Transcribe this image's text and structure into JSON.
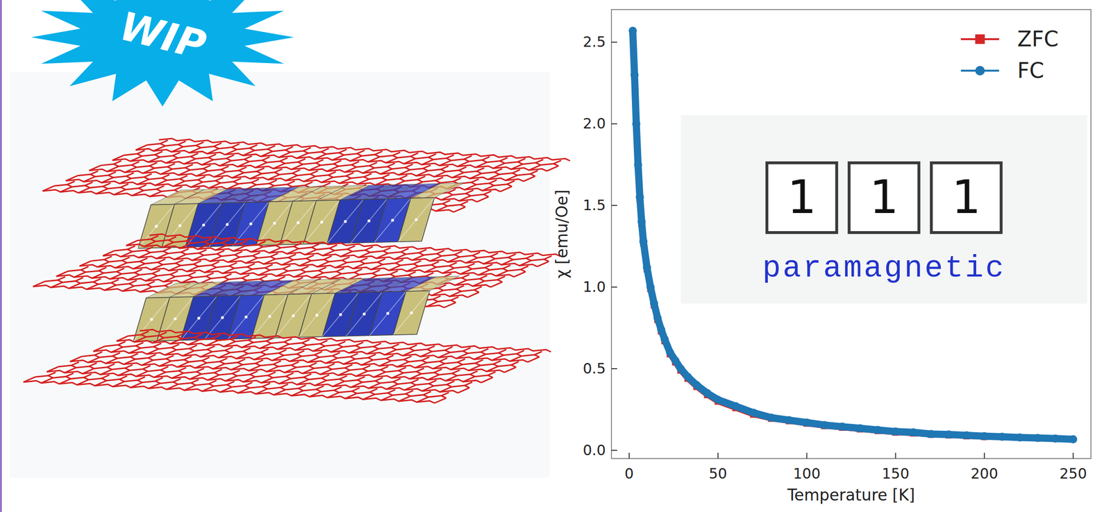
{
  "badge": "WIP",
  "inset": {
    "digits": [
      "1",
      "1",
      "1"
    ],
    "label": "paramagnetic"
  },
  "chart_data": {
    "type": "line",
    "xlabel": "Temperature [K]",
    "ylabel": "χ [emu/Oe]",
    "x": [
      2,
      3,
      4,
      5,
      6,
      7,
      8,
      10,
      12,
      14,
      16,
      18,
      20,
      23,
      26,
      29,
      33,
      38,
      44,
      50,
      60,
      70,
      80,
      90,
      100,
      110,
      120,
      130,
      140,
      150,
      160,
      170,
      180,
      190,
      200,
      210,
      220,
      230,
      240,
      250
    ],
    "series": [
      {
        "name": "ZFC",
        "color": "#d62728",
        "marker": "square",
        "line_style": "solid",
        "values": [
          2.56,
          2.29,
          1.99,
          1.74,
          1.54,
          1.39,
          1.27,
          1.11,
          0.99,
          0.89,
          0.8,
          0.73,
          0.67,
          0.59,
          0.54,
          0.49,
          0.44,
          0.39,
          0.34,
          0.3,
          0.26,
          0.22,
          0.195,
          0.18,
          0.165,
          0.15,
          0.14,
          0.13,
          0.12,
          0.11,
          0.105,
          0.097,
          0.093,
          0.088,
          0.083,
          null,
          null,
          null,
          null,
          null
        ]
      },
      {
        "name": "FC",
        "color": "#1f77b4",
        "marker": "circle",
        "line_style": "solid",
        "values": [
          2.57,
          2.3,
          2.0,
          1.75,
          1.55,
          1.4,
          1.28,
          1.12,
          1.0,
          0.9,
          0.81,
          0.74,
          0.68,
          0.6,
          0.55,
          0.5,
          0.45,
          0.4,
          0.35,
          0.31,
          0.27,
          0.23,
          0.2,
          0.185,
          0.17,
          0.155,
          0.145,
          0.135,
          0.125,
          0.115,
          0.11,
          0.1,
          0.097,
          0.092,
          0.087,
          0.083,
          0.079,
          0.076,
          0.072,
          0.068
        ]
      }
    ],
    "xlim": [
      -10,
      260
    ],
    "ylim": [
      -0.05,
      2.7
    ],
    "xticks": [
      0,
      50,
      100,
      150,
      200,
      250
    ],
    "yticks": [
      {
        "value": 0,
        "label": "0.0"
      },
      0.5,
      {
        "value": 1,
        "label": "1.0"
      },
      1.5,
      {
        "value": 2,
        "label": "2.0"
      },
      2.5
    ],
    "grid": false,
    "legend": "upper right"
  }
}
